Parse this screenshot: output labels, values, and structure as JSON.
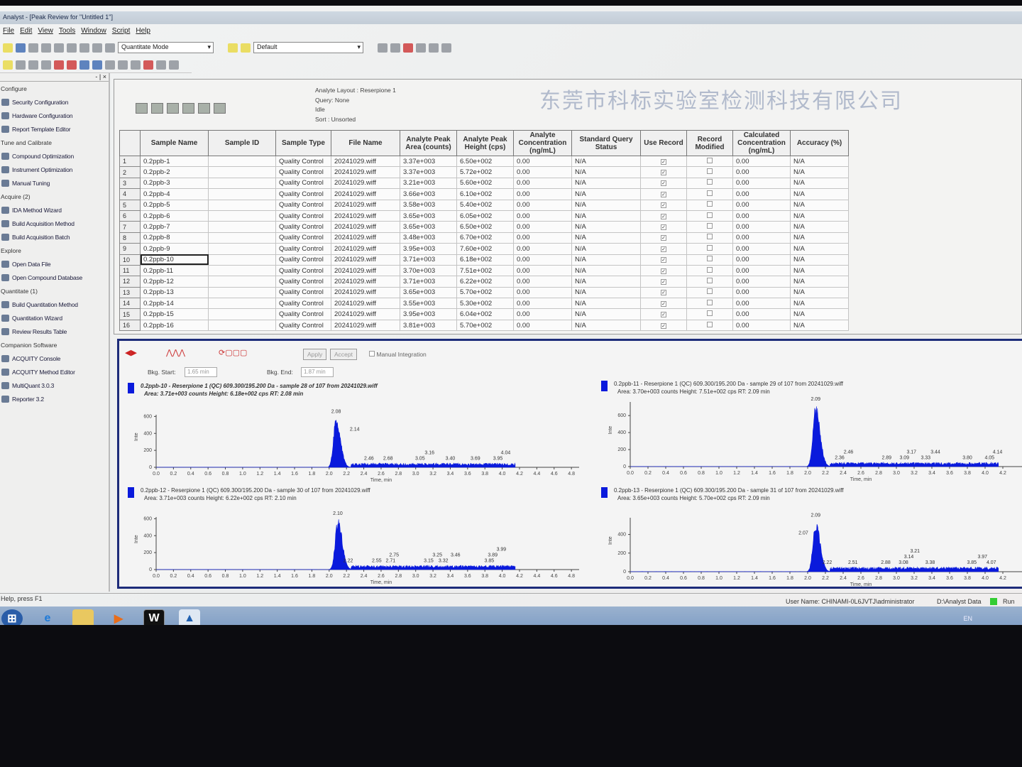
{
  "window": {
    "title": "Analyst - [Peak Review for \"Untitled 1\"]"
  },
  "menu": [
    "File",
    "Edit",
    "View",
    "Tools",
    "Window",
    "Script",
    "Help"
  ],
  "toolbar": {
    "mode": "Quantitate Mode",
    "layout": "Default"
  },
  "sidebar": {
    "items": [
      {
        "type": "cat",
        "label": "Configure"
      },
      {
        "type": "item",
        "label": "Security Configuration",
        "icon": "key-icon"
      },
      {
        "type": "item",
        "label": "Hardware Configuration",
        "icon": "hardware-icon"
      },
      {
        "type": "item",
        "label": "Report Template Editor",
        "icon": "report-icon"
      },
      {
        "type": "cat",
        "label": "Tune and Calibrate"
      },
      {
        "type": "item",
        "label": "Compound Optimization",
        "icon": "compound-icon"
      },
      {
        "type": "item",
        "label": "Instrument Optimization",
        "icon": "instrument-icon"
      },
      {
        "type": "item",
        "label": "Manual Tuning",
        "icon": "tuning-icon"
      },
      {
        "type": "cat",
        "label": "Acquire  (2)"
      },
      {
        "type": "item",
        "label": "IDA Method Wizard",
        "icon": "wizard-icon"
      },
      {
        "type": "item",
        "label": "Build Acquisition Method",
        "icon": "method-icon"
      },
      {
        "type": "item",
        "label": "Build Acquisition Batch",
        "icon": "batch-icon"
      },
      {
        "type": "cat",
        "label": "Explore"
      },
      {
        "type": "item",
        "label": "Open Data File",
        "icon": "folder-icon"
      },
      {
        "type": "item",
        "label": "Open Compound Database",
        "icon": "database-icon"
      },
      {
        "type": "cat",
        "label": "Quantitate  (1)"
      },
      {
        "type": "item",
        "label": "Build Quantitation Method",
        "icon": "quant-method-icon"
      },
      {
        "type": "item",
        "label": "Quantitation Wizard",
        "icon": "wizard-icon"
      },
      {
        "type": "item",
        "label": "Review Results Table",
        "icon": "results-table-icon"
      },
      {
        "type": "cat",
        "label": "Companion Software"
      },
      {
        "type": "item",
        "label": "ACQUITY Console",
        "icon": "acquity-icon"
      },
      {
        "type": "item",
        "label": "ACQUITY Method Editor",
        "icon": "acquity-editor-icon"
      },
      {
        "type": "item",
        "label": "MultiQuant 3.0.3",
        "icon": "multiquant-icon"
      },
      {
        "type": "item",
        "label": "Reporter 3.2",
        "icon": "reporter-icon"
      }
    ]
  },
  "info": {
    "layout": "Analyte Layout : Reserpione 1",
    "query": "Query: None",
    "state": "Idle",
    "sort": "Sort : Unsorted"
  },
  "table": {
    "columns": [
      "",
      "Sample Name",
      "Sample ID",
      "Sample Type",
      "File Name",
      "Analyte Peak Area (counts)",
      "Analyte Peak Height (cps)",
      "Analyte Concentration (ng/mL)",
      "Standard Query Status",
      "Use Record",
      "Record Modified",
      "Calculated Concentration (ng/mL)",
      "Accuracy (%)"
    ],
    "rows": [
      [
        "1",
        "0.2ppb-1",
        "",
        "Quality Control",
        "20241029.wiff",
        "3.37e+003",
        "6.50e+002",
        "0.00",
        "N/A",
        true,
        false,
        "0.00",
        "N/A"
      ],
      [
        "2",
        "0.2ppb-2",
        "",
        "Quality Control",
        "20241029.wiff",
        "3.37e+003",
        "5.72e+002",
        "0.00",
        "N/A",
        true,
        false,
        "0.00",
        "N/A"
      ],
      [
        "3",
        "0.2ppb-3",
        "",
        "Quality Control",
        "20241029.wiff",
        "3.21e+003",
        "5.60e+002",
        "0.00",
        "N/A",
        true,
        false,
        "0.00",
        "N/A"
      ],
      [
        "4",
        "0.2ppb-4",
        "",
        "Quality Control",
        "20241029.wiff",
        "3.66e+003",
        "6.10e+002",
        "0.00",
        "N/A",
        true,
        false,
        "0.00",
        "N/A"
      ],
      [
        "5",
        "0.2ppb-5",
        "",
        "Quality Control",
        "20241029.wiff",
        "3.58e+003",
        "5.40e+002",
        "0.00",
        "N/A",
        true,
        false,
        "0.00",
        "N/A"
      ],
      [
        "6",
        "0.2ppb-6",
        "",
        "Quality Control",
        "20241029.wiff",
        "3.65e+003",
        "6.05e+002",
        "0.00",
        "N/A",
        true,
        false,
        "0.00",
        "N/A"
      ],
      [
        "7",
        "0.2ppb-7",
        "",
        "Quality Control",
        "20241029.wiff",
        "3.65e+003",
        "6.50e+002",
        "0.00",
        "N/A",
        true,
        false,
        "0.00",
        "N/A"
      ],
      [
        "8",
        "0.2ppb-8",
        "",
        "Quality Control",
        "20241029.wiff",
        "3.48e+003",
        "6.70e+002",
        "0.00",
        "N/A",
        true,
        false,
        "0.00",
        "N/A"
      ],
      [
        "9",
        "0.2ppb-9",
        "",
        "Quality Control",
        "20241029.wiff",
        "3.95e+003",
        "7.60e+002",
        "0.00",
        "N/A",
        true,
        false,
        "0.00",
        "N/A"
      ],
      [
        "10",
        "0.2ppb-10",
        "",
        "Quality Control",
        "20241029.wiff",
        "3.71e+003",
        "6.18e+002",
        "0.00",
        "N/A",
        true,
        false,
        "0.00",
        "N/A"
      ],
      [
        "11",
        "0.2ppb-11",
        "",
        "Quality Control",
        "20241029.wiff",
        "3.70e+003",
        "7.51e+002",
        "0.00",
        "N/A",
        true,
        false,
        "0.00",
        "N/A"
      ],
      [
        "12",
        "0.2ppb-12",
        "",
        "Quality Control",
        "20241029.wiff",
        "3.71e+003",
        "6.22e+002",
        "0.00",
        "N/A",
        true,
        false,
        "0.00",
        "N/A"
      ],
      [
        "13",
        "0.2ppb-13",
        "",
        "Quality Control",
        "20241029.wiff",
        "3.65e+003",
        "5.70e+002",
        "0.00",
        "N/A",
        true,
        false,
        "0.00",
        "N/A"
      ],
      [
        "14",
        "0.2ppb-14",
        "",
        "Quality Control",
        "20241029.wiff",
        "3.55e+003",
        "5.30e+002",
        "0.00",
        "N/A",
        true,
        false,
        "0.00",
        "N/A"
      ],
      [
        "15",
        "0.2ppb-15",
        "",
        "Quality Control",
        "20241029.wiff",
        "3.95e+003",
        "6.04e+002",
        "0.00",
        "N/A",
        true,
        false,
        "0.00",
        "N/A"
      ],
      [
        "16",
        "0.2ppb-16",
        "",
        "Quality Control",
        "20241029.wiff",
        "3.81e+003",
        "5.70e+002",
        "0.00",
        "N/A",
        true,
        false,
        "0.00",
        "N/A"
      ]
    ]
  },
  "review": {
    "apply": "Apply",
    "accept": "Accept",
    "manual_integration": "Manual Integration",
    "bkg_start_label": "Bkg. Start:",
    "bkg_start": "1.65 min",
    "bkg_end_label": "Bkg. End:",
    "bkg_end": "1.87 min"
  },
  "chart_data": [
    {
      "type": "area",
      "title": "0.2ppb-10 - Reserpione 1 (QC) 609.300/195.200 Da - sample 28 of 107 from 20241029.wiff",
      "subtitle": "Area: 3.71e+003 counts  Height: 6.18e+002 cps  RT: 2.08 min",
      "xlabel": "Time, min",
      "ylabel": "Inte",
      "xlim": [
        0,
        4.9
      ],
      "ylim": [
        0,
        620
      ],
      "yticks": [
        0,
        200,
        400,
        600
      ],
      "rt": 2.08,
      "height": 618,
      "peak_labels": [
        "2.08",
        "2.14",
        "2.46",
        "2.68",
        "3.05",
        "3.16",
        "3.40",
        "3.69",
        "3.95",
        "4.04"
      ],
      "color": "#0a1adc",
      "bold": true
    },
    {
      "type": "area",
      "title": "0.2ppb-11 - Reserpione 1 (QC) 609.300/195.200 Da - sample 29 of 107 from 20241029.wiff",
      "subtitle": "Area: 3.70e+003 counts  Height: 7.51e+002 cps  RT: 2.09 min",
      "xlabel": "Time, min",
      "ylabel": "Inte",
      "xlim": [
        0,
        4.3
      ],
      "ylim": [
        0,
        760
      ],
      "yticks": [
        0,
        200,
        400,
        600
      ],
      "rt": 2.09,
      "height": 751,
      "peak_labels": [
        "2.09",
        "2.36",
        "2.46",
        "2.89",
        "3.09",
        "3.17",
        "3.33",
        "3.44",
        "3.80",
        "4.05",
        "4.14"
      ],
      "color": "#0a1adc",
      "bold": false
    },
    {
      "type": "area",
      "title": "0.2ppb-12 - Reserpione 1 (QC) 609.300/195.200 Da - sample 30 of 107 from 20241029.wiff",
      "subtitle": "Area: 3.71e+003 counts  Height: 6.22e+002 cps  RT: 2.10 min",
      "xlabel": "Time, min",
      "ylabel": "Inte",
      "xlim": [
        0,
        4.9
      ],
      "ylim": [
        0,
        620
      ],
      "yticks": [
        0,
        200,
        400,
        600
      ],
      "rt": 2.1,
      "height": 622,
      "peak_labels": [
        "2.10",
        "2.22",
        "2.55",
        "2.71",
        "2.75",
        "3.15",
        "3.25",
        "3.32",
        "3.46",
        "3.85",
        "3.89",
        "3.99"
      ],
      "color": "#0a1adc",
      "bold": false
    },
    {
      "type": "area",
      "title": "0.2ppb-13 - Reserpione 1 (QC) 609.300/195.200 Da - sample 31 of 107 from 20241029.wiff",
      "subtitle": "Area: 3.65e+003 counts  Height: 5.70e+002 cps  RT: 2.09 min",
      "xlabel": "Time, min",
      "ylabel": "Inte",
      "xlim": [
        0,
        4.3
      ],
      "ylim": [
        0,
        580
      ],
      "yticks": [
        0,
        200,
        400
      ],
      "rt": 2.09,
      "height": 570,
      "peak_labels": [
        "2.09",
        "2.07",
        "2.22",
        "2.51",
        "2.88",
        "3.08",
        "3.14",
        "3.21",
        "3.38",
        "3.85",
        "3.97",
        "4.07"
      ],
      "color": "#0a1adc",
      "bold": false
    }
  ],
  "status": {
    "help": "Help, press F1",
    "user": "User Name: CHINAMI-0L6JVTJ\\administrator",
    "path": "D:\\Analyst Data",
    "run": "Run"
  },
  "taskbar": {
    "lang": "EN"
  },
  "watermark": "东莞市科标实验室检测科技有限公司"
}
